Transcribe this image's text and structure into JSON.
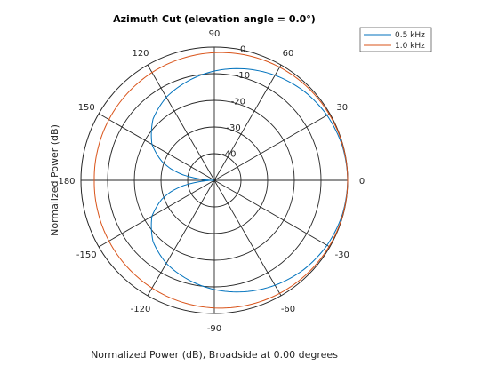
{
  "chart_data": {
    "type": "line",
    "subtype": "polar",
    "title": "Azimuth Cut (elevation angle = 0.0°)",
    "xlabel": "Normalized Power (dB), Broadside at 0.00 degrees",
    "ylabel": "Normalized Power (dB)",
    "r_range_db": [
      -50,
      0
    ],
    "r_ticks": [
      {
        "value": 0,
        "label": "0"
      },
      {
        "value": -10,
        "label": "-10"
      },
      {
        "value": -20,
        "label": "-20"
      },
      {
        "value": -30,
        "label": "-30"
      },
      {
        "value": -40,
        "label": "-40"
      }
    ],
    "angle_ticks": [
      {
        "angle": 0,
        "label": "0"
      },
      {
        "angle": 30,
        "label": "30"
      },
      {
        "angle": 60,
        "label": "60"
      },
      {
        "angle": 90,
        "label": "90"
      },
      {
        "angle": 120,
        "label": "120"
      },
      {
        "angle": 150,
        "label": "150"
      },
      {
        "angle": 180,
        "label": "180"
      },
      {
        "angle": -150,
        "label": "-150"
      },
      {
        "angle": -120,
        "label": "-120"
      },
      {
        "angle": -90,
        "label": "-90"
      },
      {
        "angle": -60,
        "label": "-60"
      },
      {
        "angle": -30,
        "label": "-30"
      }
    ],
    "grid": true,
    "legend_position": "top-right",
    "series": [
      {
        "name": "0.5 kHz",
        "color": "#0072bd",
        "angles_deg": [
          0,
          15,
          30,
          45,
          60,
          75,
          90,
          105,
          120,
          135,
          150,
          160,
          165,
          170,
          175,
          180,
          -175,
          -170,
          -165,
          -160,
          -150,
          -135,
          -120,
          -105,
          -90,
          -75,
          -60,
          -45,
          -30,
          -15
        ],
        "power_db": [
          0,
          -0.3,
          -1.2,
          -2.6,
          -4.5,
          -6.7,
          -9.0,
          -11.5,
          -14.0,
          -17.5,
          -23.0,
          -29.0,
          -33.0,
          -38.0,
          -45.0,
          -50.0,
          -45.0,
          -38.0,
          -33.0,
          -29.0,
          -23.0,
          -17.5,
          -14.0,
          -11.5,
          -9.0,
          -6.7,
          -4.5,
          -2.6,
          -1.2,
          -0.3
        ]
      },
      {
        "name": "1.0 kHz",
        "color": "#d95319",
        "angles_deg": [
          0,
          15,
          30,
          45,
          60,
          75,
          90,
          105,
          120,
          135,
          150,
          165,
          180,
          -165,
          -150,
          -135,
          -120,
          -105,
          -90,
          -75,
          -60,
          -45,
          -30,
          -15
        ],
        "power_db": [
          0,
          -0.1,
          -0.3,
          -0.6,
          -1.0,
          -1.5,
          -2.1,
          -2.7,
          -3.3,
          -3.9,
          -4.4,
          -4.8,
          -5.0,
          -4.8,
          -4.4,
          -3.9,
          -3.3,
          -2.7,
          -2.1,
          -1.5,
          -1.0,
          -0.6,
          -0.3,
          -0.1
        ]
      }
    ]
  }
}
